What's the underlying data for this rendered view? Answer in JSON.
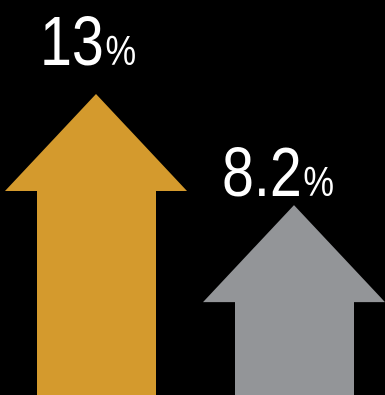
{
  "chart_data": {
    "type": "bar",
    "style": "arrows",
    "categories": [
      "",
      ""
    ],
    "series": [
      {
        "values": [
          13,
          8.2
        ]
      }
    ],
    "unit": "%",
    "labels": [
      {
        "number": "13",
        "unit": "%"
      },
      {
        "number": "8.2",
        "unit": "%"
      }
    ],
    "title": "",
    "xlabel": "",
    "ylabel": "",
    "ylim": [
      0,
      13
    ],
    "grid": false,
    "legend": "none",
    "colors": [
      "#D49A2D",
      "#939598"
    ],
    "background": "#000000"
  }
}
